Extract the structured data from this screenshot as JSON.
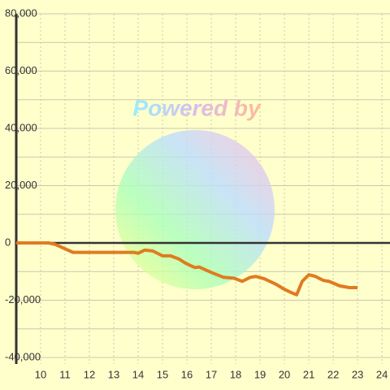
{
  "chart_data": {
    "type": "line",
    "watermark": "Powered by",
    "x": [
      9,
      10.33,
      10.6,
      11.33,
      13.83,
      14,
      14.27,
      14.6,
      15,
      15.33,
      15.67,
      15.93,
      16.17,
      16.33,
      16.5,
      17,
      17.5,
      17.93,
      18.27,
      18.6,
      18.83,
      19.17,
      19.67,
      20,
      20.27,
      20.5,
      20.73,
      21,
      21.27,
      21.6,
      21.83,
      22.27,
      22.67,
      23
    ],
    "series": [
      {
        "color": "#e07b20",
        "values": [
          0,
          0,
          -500,
          -3300,
          -3300,
          -3600,
          -2500,
          -2800,
          -4500,
          -4500,
          -5600,
          -7000,
          -8000,
          -8600,
          -8400,
          -10300,
          -12000,
          -12300,
          -13400,
          -12000,
          -11700,
          -12500,
          -14500,
          -16200,
          -17300,
          -18100,
          -13400,
          -11100,
          -11700,
          -13100,
          -13400,
          -15000,
          -15600,
          -15600
        ]
      }
    ],
    "xlim": [
      9,
      24.33
    ],
    "xticks": [
      10,
      11,
      12,
      13,
      14,
      15,
      16,
      17,
      18,
      19,
      20,
      21,
      22,
      23,
      24
    ],
    "ylim": [
      -40000,
      80000
    ],
    "yticks": [
      {
        "value": 80000,
        "label": "80,000"
      },
      {
        "value": 60000,
        "label": "60,000"
      },
      {
        "value": 40000,
        "label": "40,000"
      },
      {
        "value": 20000,
        "label": "20,000"
      },
      0,
      {
        "value": -20000,
        "label": "-20,000"
      },
      {
        "value": -40000,
        "label": "-40,000"
      }
    ],
    "ygrid": [
      80000,
      70000,
      60000,
      50000,
      40000,
      30000,
      20000,
      10000,
      -10000,
      -20000,
      -30000,
      -40000
    ],
    "grid": true
  }
}
